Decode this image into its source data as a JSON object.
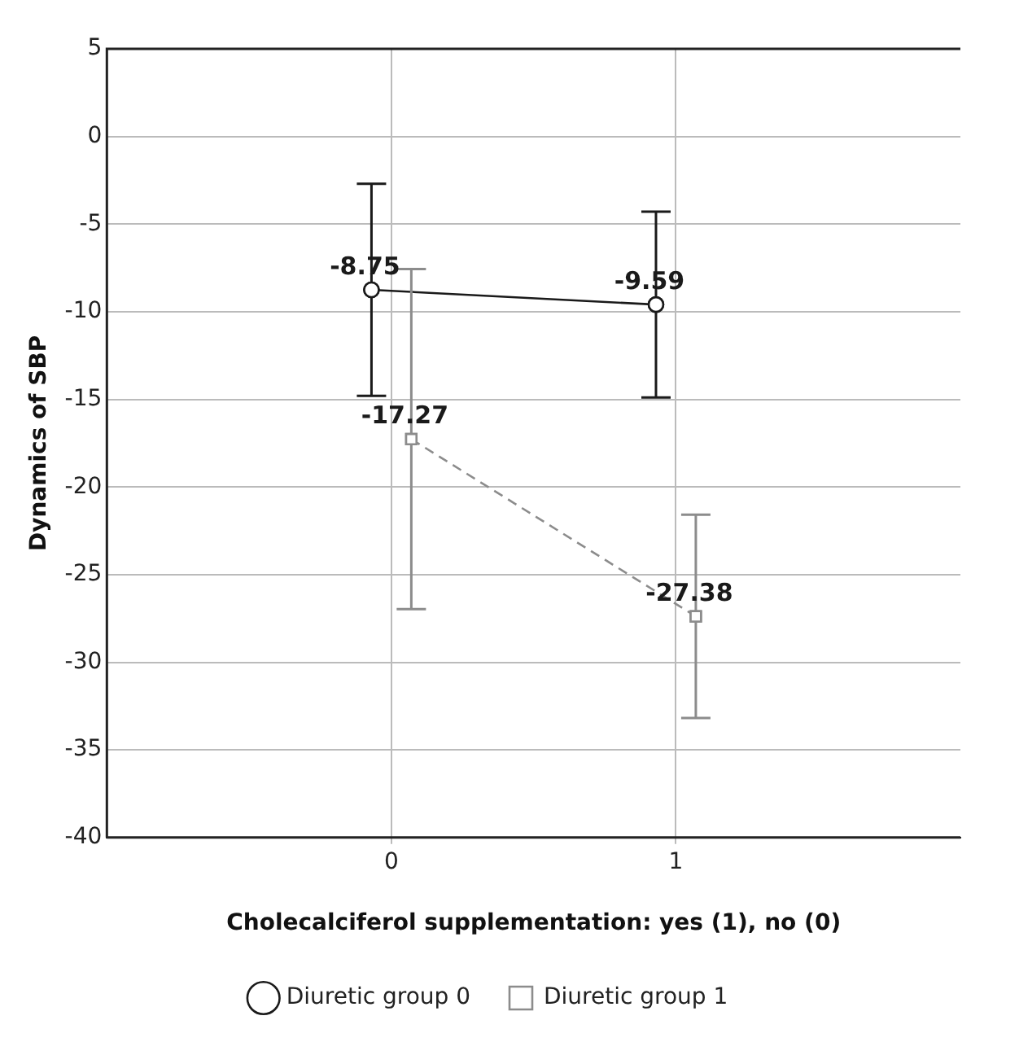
{
  "chart_data": {
    "type": "line",
    "xlabel": "Cholecalciferol supplementation: yes (1), no (0)",
    "ylabel": "Dynamics of SBP",
    "categories": [
      "0",
      "1"
    ],
    "series": [
      {
        "name": "Diuretic group 0",
        "color": "#1a1a1a",
        "values": [
          -8.75,
          -9.59
        ],
        "errors": [
          6.05,
          5.3
        ],
        "marker": "circle",
        "line_style": "solid"
      },
      {
        "name": "Diuretic group 1",
        "color": "#8c8c8c",
        "values": [
          -17.27,
          -27.38
        ],
        "errors": [
          9.7,
          5.8
        ],
        "marker": "square",
        "line_style": "dashed"
      }
    ],
    "ylim": [
      -40,
      5
    ],
    "yticks": [
      -40,
      -35,
      -30,
      -25,
      -20,
      -15,
      -10,
      -5,
      0,
      5
    ],
    "grid": true,
    "legend": "bottom",
    "data_labels": true
  }
}
